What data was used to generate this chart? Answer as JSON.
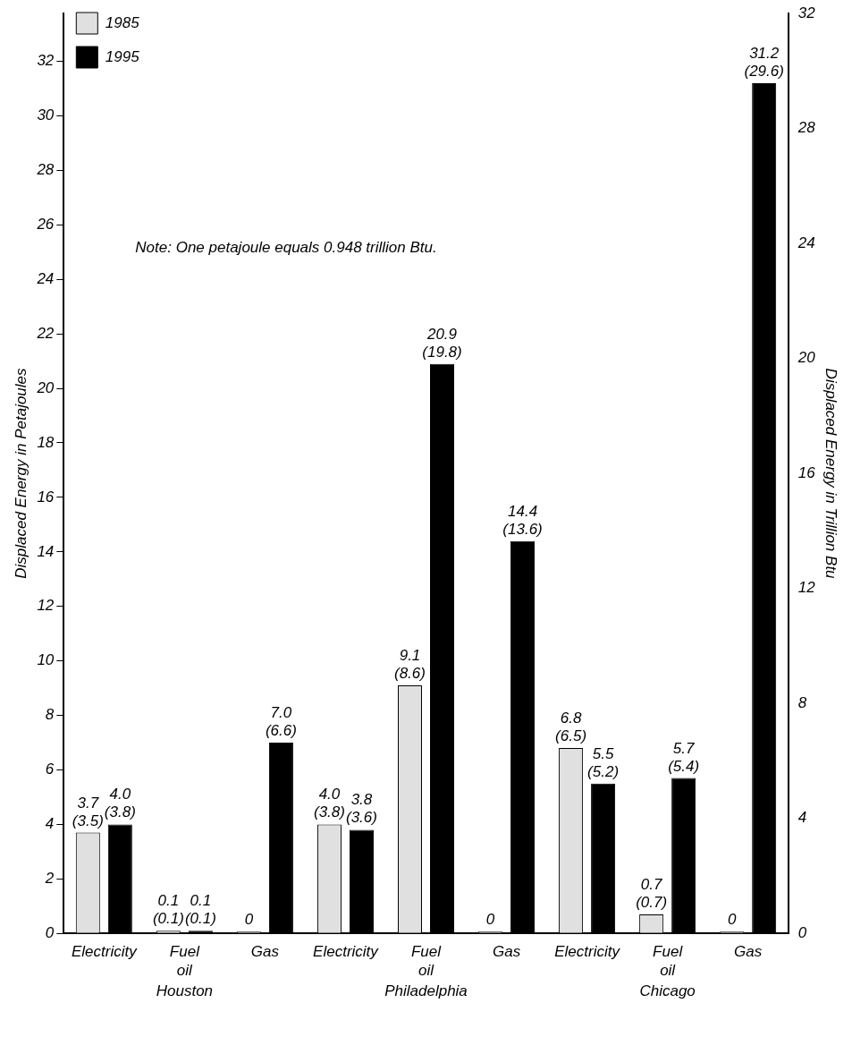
{
  "chart_data": {
    "type": "bar",
    "categories": [
      "Electricity",
      "Fuel oil",
      "Gas",
      "Electricity",
      "Fuel oil",
      "Gas",
      "Electricity",
      "Fuel oil",
      "Gas"
    ],
    "series": [
      {
        "name": "1985",
        "color": "#e0e0e0",
        "values": [
          3.7,
          0.1,
          0,
          4.0,
          9.1,
          0,
          6.8,
          0.7,
          0
        ],
        "value_labels": [
          "3.7\n(3.5)",
          "0.1\n(0.1)",
          "0",
          "4.0\n(3.8)",
          "9.1\n(8.6)",
          "0",
          "6.8\n(6.5)",
          "0.7\n(0.7)",
          "0"
        ]
      },
      {
        "name": "1995",
        "color": "#000000",
        "values": [
          4.0,
          0.1,
          7.0,
          3.8,
          20.9,
          14.4,
          5.5,
          5.7,
          31.2
        ],
        "value_labels": [
          "4.0\n(3.8)",
          "0.1\n(0.1)",
          "7.0\n(6.6)",
          "3.8\n(3.6)",
          "20.9\n(19.8)",
          "14.4\n(13.6)",
          "5.5\n(5.2)",
          "5.7\n(5.4)",
          "31.2\n(29.6)"
        ]
      }
    ],
    "ylim": [
      0,
      33.76
    ],
    "yticks": [
      0,
      2,
      4,
      6,
      8,
      10,
      12,
      14,
      16,
      18,
      20,
      22,
      24,
      26,
      28,
      30,
      32
    ],
    "y2lim": [
      0,
      32
    ],
    "y2ticks": [
      0,
      4,
      8,
      12,
      16,
      20,
      24,
      28,
      32
    ],
    "ylabel": "Displaced Energy in Petajoules",
    "y2label": "Displaced Energy in Trillion Btu",
    "annotations": [
      "Note: One petajoule equals 0.948 trillion Btu.",
      "Houston",
      "Philadelphia",
      "Chicago"
    ],
    "legend": "top left",
    "grid": false
  }
}
